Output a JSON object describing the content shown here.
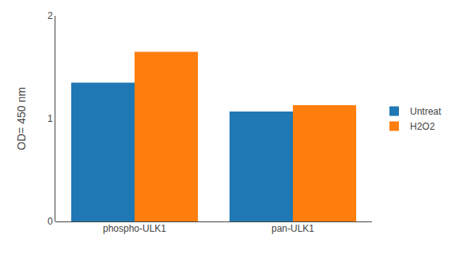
{
  "chart_data": {
    "type": "bar",
    "categories": [
      "phospho-ULK1",
      "pan-ULK1"
    ],
    "series": [
      {
        "name": "Untreat",
        "values": [
          1.35,
          1.07
        ]
      },
      {
        "name": "H2O2",
        "values": [
          1.65,
          1.13
        ]
      }
    ],
    "ylabel": "OD= 450 nm",
    "ylim": [
      0,
      2
    ],
    "yticks": [
      0,
      1,
      2
    ],
    "grid": false,
    "legend": "right"
  }
}
